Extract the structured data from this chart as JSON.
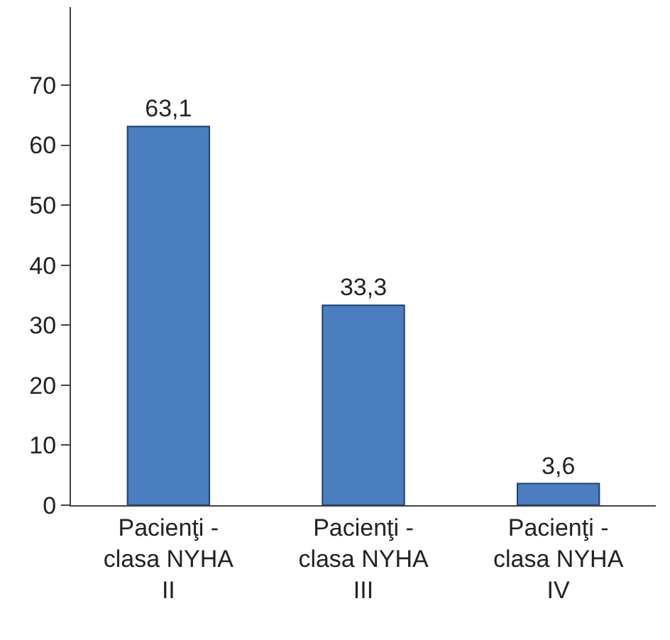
{
  "chart_data": {
    "type": "bar",
    "categories": [
      "Pacienţi -\nclasa NYHA\nII",
      "Pacienţi -\nclasa NYHA\nIII",
      "Pacienţi -\nclasa NYHA\nIV"
    ],
    "values": [
      63.1,
      33.3,
      3.6
    ],
    "value_labels": [
      "63,1",
      "33,3",
      "3,6"
    ],
    "color": "#4a7ebf",
    "ylim": [
      0,
      83
    ],
    "yticks": [
      0,
      10,
      20,
      30,
      40,
      50,
      60,
      70
    ]
  }
}
